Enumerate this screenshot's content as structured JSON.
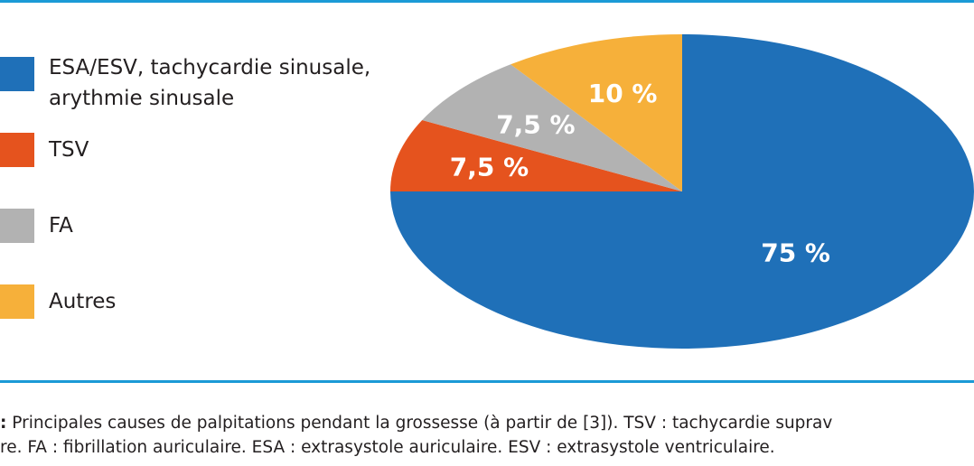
{
  "chart_data": {
    "type": "pie",
    "title": "",
    "slices": [
      {
        "label": "ESA/ESV, tachycardie sinusale, arythmie sinusale",
        "value": 75,
        "data_label": "75 %",
        "color": "#1f70b8"
      },
      {
        "label": "TSV",
        "value": 7.5,
        "data_label": "7,5 %",
        "color": "#e5531e"
      },
      {
        "label": "FA",
        "value": 7.5,
        "data_label": "7,5 %",
        "color": "#b2b2b2"
      },
      {
        "label": "Autres",
        "value": 10,
        "data_label": "10 %",
        "color": "#f6b03a"
      }
    ],
    "legend": [
      {
        "line1": "ESA/ESV, tachycardie sinusale,",
        "line2": "arythmie sinusale",
        "color": "#1f70b8"
      },
      {
        "line1": "TSV",
        "line2": "",
        "color": "#e5531e"
      },
      {
        "line1": "FA",
        "line2": "",
        "color": "#b2b2b2"
      },
      {
        "line1": "Autres",
        "line2": "",
        "color": "#f6b03a"
      }
    ],
    "legend_position": "left"
  },
  "caption": {
    "lead": ":",
    "line1": "Principales causes de palpitations pendant la grossesse (à partir de [3]). TSV : tachycardie suprav",
    "line2": "re. FA : fibrillation auriculaire. ESA : extrasystole auriculaire. ESV : extrasystole ventriculaire."
  },
  "colors": {
    "rule": "#1b9ad6",
    "label_text": "#ffffff"
  }
}
